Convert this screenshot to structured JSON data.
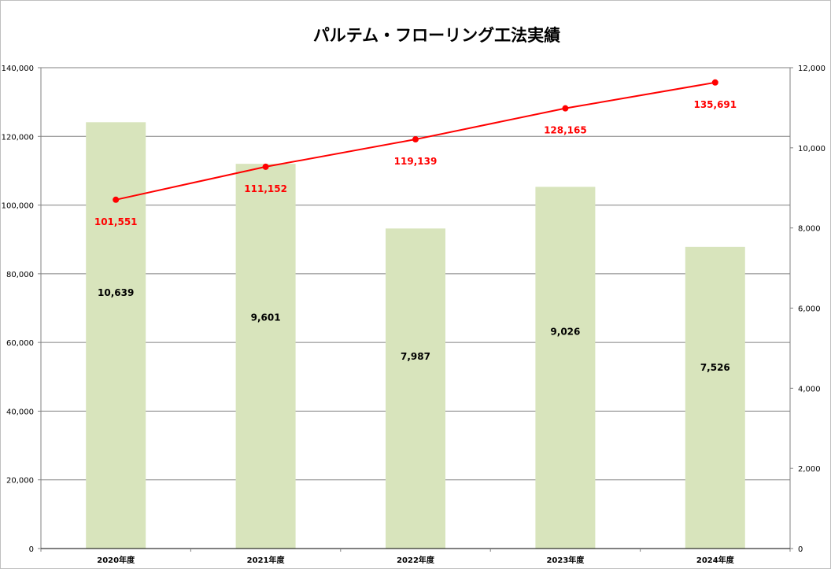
{
  "chart_data": {
    "type": "bar+line",
    "title": "パルテム・フローリング工法実績",
    "categories": [
      "2020年度",
      "2021年度",
      "2022年度",
      "2023年度",
      "2024年度"
    ],
    "series": [
      {
        "type": "bar",
        "axis": "right",
        "values": [
          10639,
          9601,
          7987,
          9026,
          7526
        ],
        "color": "#d8e4bc"
      },
      {
        "type": "line",
        "axis": "left",
        "values": [
          101551,
          111152,
          119139,
          128165,
          135691
        ],
        "color": "#ff0000"
      }
    ],
    "bar_labels": [
      "10,639",
      "9,601",
      "7,987",
      "9,026",
      "7,526"
    ],
    "line_labels": [
      "101,551",
      "111,152",
      "119,139",
      "128,165",
      "135,691"
    ],
    "y_left": {
      "range": [
        0,
        140000
      ],
      "ticks": [
        "0",
        "20,000",
        "40,000",
        "60,000",
        "80,000",
        "100,000",
        "120,000",
        "140,000"
      ]
    },
    "y_right": {
      "range": [
        0,
        12000
      ],
      "ticks": [
        "0",
        "2,000",
        "4,000",
        "6,000",
        "8,000",
        "10,000",
        "12,000"
      ]
    },
    "grid": true,
    "legend": "none"
  }
}
